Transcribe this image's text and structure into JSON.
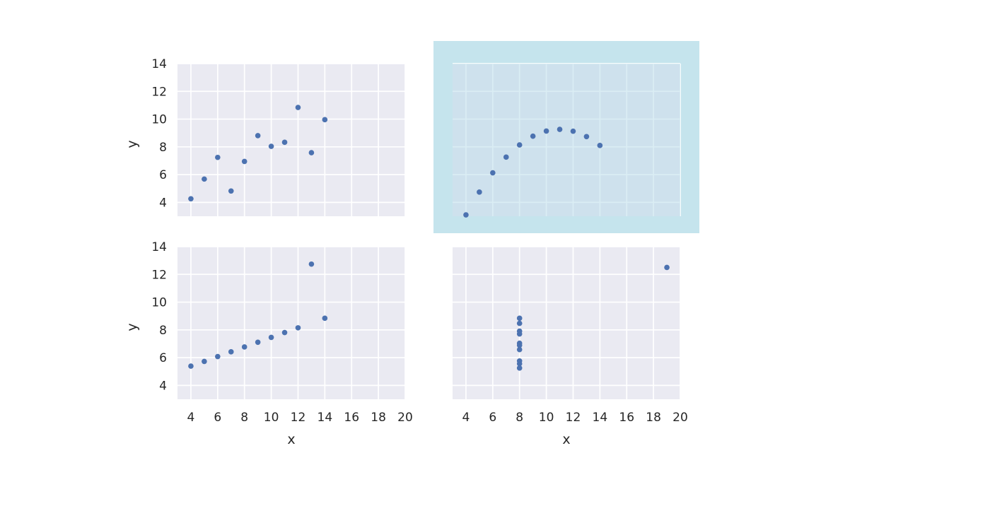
{
  "chart_data": [
    {
      "type": "scatter",
      "xlabel": "",
      "ylabel": "y",
      "xlim": [
        3,
        20
      ],
      "ylim": [
        3,
        14
      ],
      "xticks": [
        4,
        6,
        8,
        10,
        12,
        14,
        16,
        18,
        20
      ],
      "yticks": [
        4,
        6,
        8,
        10,
        12,
        14
      ],
      "show_xticks": false,
      "show_yticks": true,
      "highlighted": false,
      "grid": true,
      "series": [
        {
          "x": [
            4,
            5,
            6,
            7,
            8,
            9,
            10,
            11,
            12,
            13,
            14
          ],
          "y": [
            4.26,
            5.68,
            7.24,
            4.82,
            6.95,
            8.81,
            8.04,
            8.33,
            10.84,
            7.58,
            9.96
          ]
        }
      ]
    },
    {
      "type": "scatter",
      "xlabel": "",
      "ylabel": "",
      "xlim": [
        3,
        20
      ],
      "ylim": [
        3,
        14
      ],
      "xticks": [
        4,
        6,
        8,
        10,
        12,
        14,
        16,
        18,
        20
      ],
      "yticks": [
        4,
        6,
        8,
        10,
        12,
        14
      ],
      "show_xticks": false,
      "show_yticks": false,
      "highlighted": true,
      "highlight_color": "#add8e6",
      "grid": true,
      "series": [
        {
          "x": [
            4,
            5,
            6,
            7,
            8,
            9,
            10,
            11,
            12,
            13,
            14
          ],
          "y": [
            3.1,
            4.74,
            6.13,
            7.26,
            8.14,
            8.77,
            9.14,
            9.26,
            9.13,
            8.74,
            8.1
          ]
        }
      ]
    },
    {
      "type": "scatter",
      "xlabel": "x",
      "ylabel": "y",
      "xlim": [
        3,
        20
      ],
      "ylim": [
        3,
        14
      ],
      "xticks": [
        4,
        6,
        8,
        10,
        12,
        14,
        16,
        18,
        20
      ],
      "yticks": [
        4,
        6,
        8,
        10,
        12,
        14
      ],
      "show_xticks": true,
      "show_yticks": true,
      "highlighted": false,
      "grid": true,
      "series": [
        {
          "x": [
            4,
            5,
            6,
            7,
            8,
            9,
            10,
            11,
            12,
            13,
            14
          ],
          "y": [
            5.39,
            5.73,
            6.08,
            6.42,
            6.77,
            7.11,
            7.46,
            7.81,
            8.15,
            12.74,
            8.84
          ]
        }
      ]
    },
    {
      "type": "scatter",
      "xlabel": "x",
      "ylabel": "",
      "xlim": [
        3,
        20
      ],
      "ylim": [
        3,
        14
      ],
      "xticks": [
        4,
        6,
        8,
        10,
        12,
        14,
        16,
        18,
        20
      ],
      "yticks": [
        4,
        6,
        8,
        10,
        12,
        14
      ],
      "show_xticks": true,
      "show_yticks": false,
      "highlighted": false,
      "grid": true,
      "series": [
        {
          "x": [
            8,
            8,
            8,
            8,
            8,
            8,
            8,
            19,
            8,
            8,
            8
          ],
          "y": [
            6.58,
            5.76,
            7.71,
            8.84,
            8.47,
            7.04,
            5.25,
            12.5,
            5.56,
            7.91,
            6.89
          ]
        }
      ]
    }
  ]
}
